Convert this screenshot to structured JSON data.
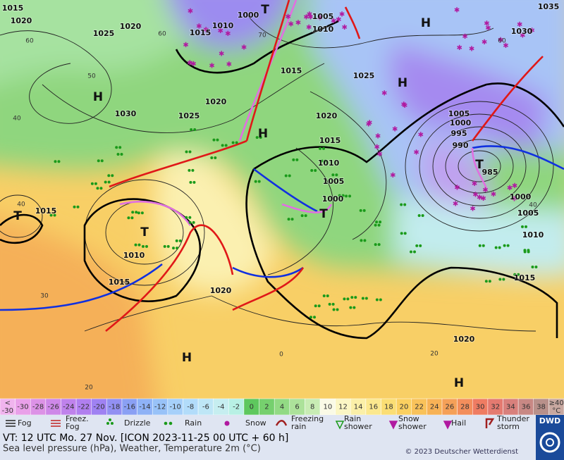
{
  "map": {
    "isobar_labels": [
      "1015",
      "1020",
      "1025",
      "1020",
      "1015",
      "1010",
      "1000",
      "1005",
      "1010",
      "1035",
      "1030",
      "1015",
      "1025",
      "1030",
      "1025",
      "1020",
      "1020",
      "1015",
      "1010",
      "1005",
      "1000",
      "1005",
      "1000",
      "995",
      "990",
      "985",
      "1000",
      "1005",
      "1010",
      "1015",
      "1015",
      "1010",
      "1015",
      "1020",
      "1020"
    ],
    "centers": [
      "T",
      "H",
      "H",
      "H",
      "H",
      "T",
      "T",
      "T",
      "T",
      "H",
      "H"
    ],
    "temperature_labels": [
      "60",
      "60",
      "70",
      "50",
      "40",
      "40",
      "30",
      "20",
      "0",
      "20",
      "60",
      "40"
    ]
  },
  "scale": {
    "first_cell": {
      "lines": [
        "<",
        "-30"
      ],
      "color": "#f0b4ee"
    },
    "cells": [
      {
        "label": "-30",
        "color": "#e9a0e9"
      },
      {
        "label": "-28",
        "color": "#dc92e6"
      },
      {
        "label": "-26",
        "color": "#ce88e8"
      },
      {
        "label": "-24",
        "color": "#bf82ec"
      },
      {
        "label": "-22",
        "color": "#b07fef"
      },
      {
        "label": "-20",
        "color": "#9f82f2"
      },
      {
        "label": "-18",
        "color": "#9290f2"
      },
      {
        "label": "-16",
        "color": "#8aa0f4"
      },
      {
        "label": "-14",
        "color": "#8eb2f6"
      },
      {
        "label": "-12",
        "color": "#98c2f8"
      },
      {
        "label": "-10",
        "color": "#a6d0fa"
      },
      {
        "label": "-8",
        "color": "#b2dcfa"
      },
      {
        "label": "-6",
        "color": "#bee6f6"
      },
      {
        "label": "-4",
        "color": "#c6eef0"
      },
      {
        "label": "-2",
        "color": "#b8f0e4"
      },
      {
        "label": "0",
        "color": "#5ec85e"
      },
      {
        "label": "2",
        "color": "#76d06e"
      },
      {
        "label": "4",
        "color": "#92da84"
      },
      {
        "label": "6",
        "color": "#acE29a"
      },
      {
        "label": "8",
        "color": "#c8ecb4"
      },
      {
        "label": "10",
        "color": "#fafae6"
      },
      {
        "label": "12",
        "color": "#fbf6c4"
      },
      {
        "label": "14",
        "color": "#fbf0a8"
      },
      {
        "label": "16",
        "color": "#fbe88e"
      },
      {
        "label": "18",
        "color": "#fbde74"
      },
      {
        "label": "20",
        "color": "#fbd060"
      },
      {
        "label": "22",
        "color": "#f9c25a"
      },
      {
        "label": "24",
        "color": "#f7b256"
      },
      {
        "label": "26",
        "color": "#f5a058"
      },
      {
        "label": "28",
        "color": "#f38e5c"
      },
      {
        "label": "30",
        "color": "#ef7c62"
      },
      {
        "label": "32",
        "color": "#e47a70"
      },
      {
        "label": "34",
        "color": "#d8807c"
      },
      {
        "label": "36",
        "color": "#c88884"
      },
      {
        "label": "38",
        "color": "#b8908a"
      }
    ],
    "last_cell": {
      "lines": [
        "≥40",
        "°C"
      ],
      "color": "#c8a8a0"
    }
  },
  "legend": {
    "items": [
      {
        "lines": [
          "Fog"
        ]
      },
      {
        "lines": [
          "Freez.",
          "Fog"
        ]
      },
      {
        "lines": [
          "Drizzle"
        ]
      },
      {
        "lines": [
          "Rain"
        ]
      },
      {
        "lines": [
          "Snow"
        ]
      },
      {
        "lines": [
          "Freezing",
          "rain"
        ]
      },
      {
        "lines": [
          "Rain",
          "shower"
        ]
      },
      {
        "lines": [
          "Snow",
          "shower"
        ]
      },
      {
        "lines": [
          "Hail"
        ]
      },
      {
        "lines": [
          "Thunder",
          "storm"
        ]
      }
    ]
  },
  "footer": {
    "valid_time": "VT: 12 UTC Mo.  27 Nov. [ICON 2023-11-25  00 UTC + 60 h]",
    "subtitle": "Sea level pressure (hPa), Weather, Temperature 2m (°C)",
    "copyright": "© 2023 Deutscher Wetterdienst",
    "logo": "DWD"
  }
}
